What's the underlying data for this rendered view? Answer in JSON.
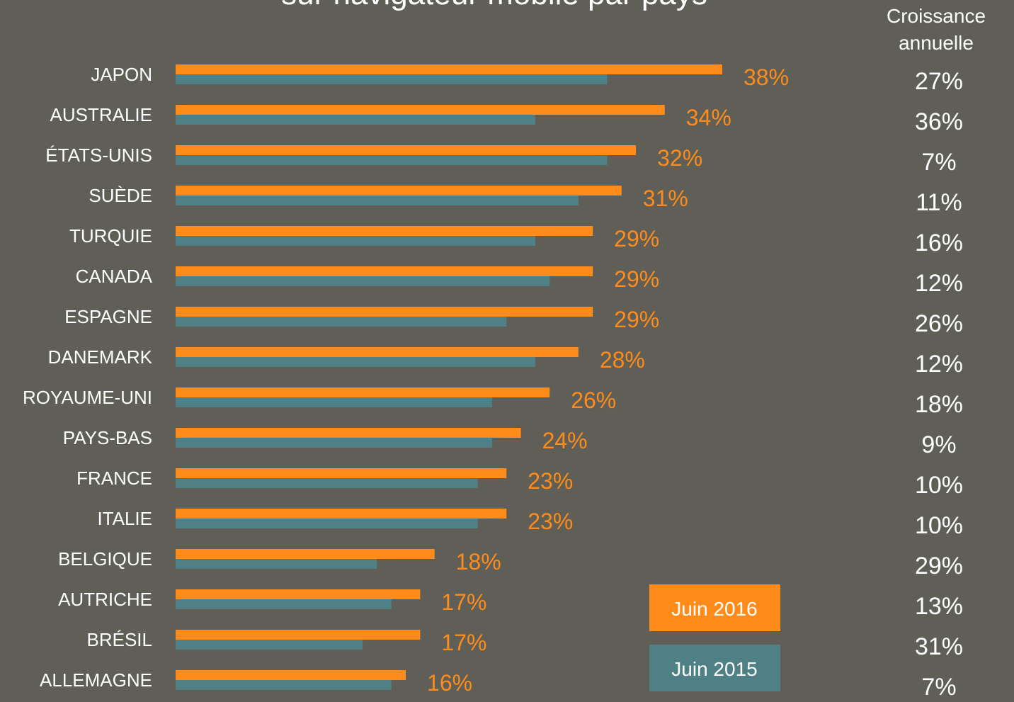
{
  "title": "sur navigateur mobile par pays",
  "growth_header": [
    "Croissance",
    "annuelle"
  ],
  "colors": {
    "background": "#5f5f58",
    "series_2016": "#ff8c1a",
    "series_2015": "#4f8085",
    "label_text": "#ffffff"
  },
  "legend": [
    {
      "label": "Juin 2016",
      "color": "#ff8c1a"
    },
    {
      "label": "Juin 2015",
      "color": "#4f8085"
    }
  ],
  "chart_data": {
    "type": "bar",
    "orientation": "horizontal",
    "categories": [
      "JAPON",
      "AUSTRALIE",
      "ÉTATS-UNIS",
      "SUÈDE",
      "TURQUIE",
      "CANADA",
      "ESPAGNE",
      "DANEMARK",
      "ROYAUME-UNI",
      "PAYS-BAS",
      "FRANCE",
      "ITALIE",
      "BELGIQUE",
      "AUTRICHE",
      "BRÉSIL",
      "ALLEMAGNE"
    ],
    "series": [
      {
        "name": "Juin 2016",
        "values": [
          38,
          34,
          32,
          31,
          29,
          29,
          29,
          28,
          26,
          24,
          23,
          23,
          18,
          17,
          17,
          16
        ]
      },
      {
        "name": "Juin 2015",
        "values": [
          30,
          25,
          30,
          28,
          25,
          26,
          23,
          25,
          22,
          22,
          21,
          21,
          14,
          15,
          13,
          15
        ]
      }
    ],
    "data_labels": [
      "38%",
      "34%",
      "32%",
      "31%",
      "29%",
      "29%",
      "29%",
      "28%",
      "26%",
      "24%",
      "23%",
      "23%",
      "18%",
      "17%",
      "17%",
      "16%"
    ],
    "growth": [
      "27%",
      "36%",
      "7%",
      "11%",
      "16%",
      "12%",
      "26%",
      "12%",
      "18%",
      "9%",
      "10%",
      "10%",
      "29%",
      "13%",
      "31%",
      "7%"
    ],
    "xlim": [
      0,
      38
    ],
    "grid": false,
    "legend_position": "bottom-right"
  }
}
